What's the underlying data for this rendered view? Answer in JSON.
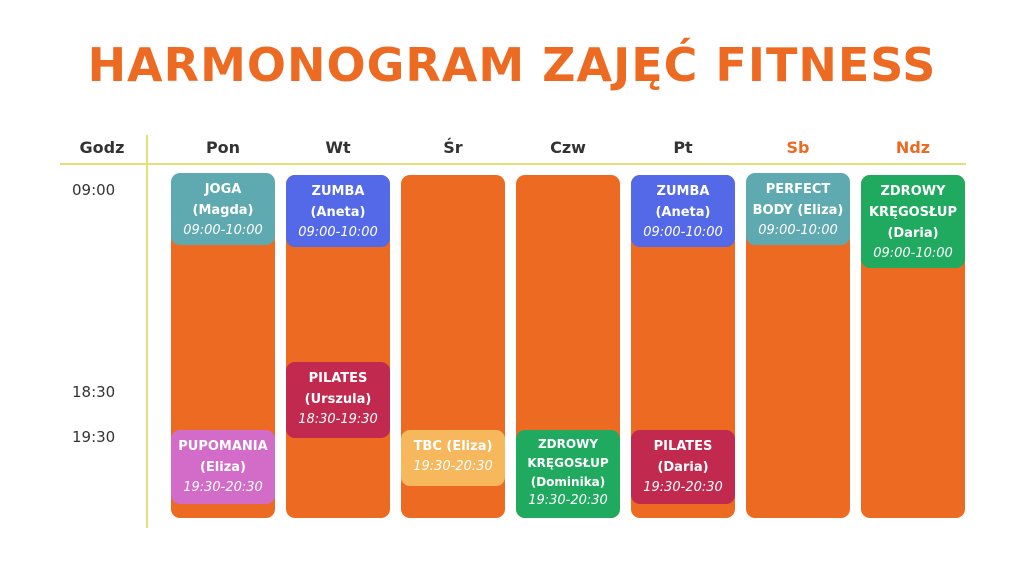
{
  "title": "HARMONOGRAM ZAJĘĆ FITNESS",
  "header": {
    "time_label": "Godz",
    "days": [
      "Pon",
      "Wt",
      "Śr",
      "Czw",
      "Pt",
      "Sb",
      "Ndz"
    ]
  },
  "times": [
    "09:00",
    "18:30",
    "19:30"
  ],
  "classes": [
    {
      "day": "Pon",
      "lines": [
        "JOGA",
        "(Magda)"
      ],
      "time": "09:00-10:00",
      "color": "#5eaab0"
    },
    {
      "day": "Wt",
      "lines": [
        "ZUMBA",
        "(Aneta)"
      ],
      "time": "09:00-10:00",
      "color": "#5469e8"
    },
    {
      "day": "Pt",
      "lines": [
        "ZUMBA",
        "(Aneta)"
      ],
      "time": "09:00-10:00",
      "color": "#5469e8"
    },
    {
      "day": "Sb",
      "lines": [
        "PERFECT",
        "BODY (Eliza)"
      ],
      "time": "09:00-10:00",
      "color": "#5eaab0"
    },
    {
      "day": "Ndz",
      "lines": [
        "ZDROWY",
        "KRĘGOSŁUP",
        "(Daria)"
      ],
      "time": "09:00-10:00",
      "color": "#1faa60"
    },
    {
      "day": "Wt",
      "lines": [
        "PILATES",
        "(Urszula)"
      ],
      "time": "18:30-19:30",
      "color": "#c2294f"
    },
    {
      "day": "Pon",
      "lines": [
        "PUPOMANIA",
        "(Eliza)"
      ],
      "time": "19:30-20:30",
      "color": "#d36cc9"
    },
    {
      "day": "Śr",
      "lines": [
        "TBC (Eliza)"
      ],
      "time": "19:30-20:30",
      "color": "#f6b75d"
    },
    {
      "day": "Czw",
      "lines": [
        "ZDROWY",
        "KRĘGOSŁUP",
        "(Dominika)"
      ],
      "time": "19:30-20:30",
      "color": "#1faa60"
    },
    {
      "day": "Pt",
      "lines": [
        "PILATES",
        "(Daria)"
      ],
      "time": "19:30-20:30",
      "color": "#c2294f"
    }
  ],
  "colors": {
    "accent": "#ec6a22",
    "grid_line": "#e5df7a"
  }
}
